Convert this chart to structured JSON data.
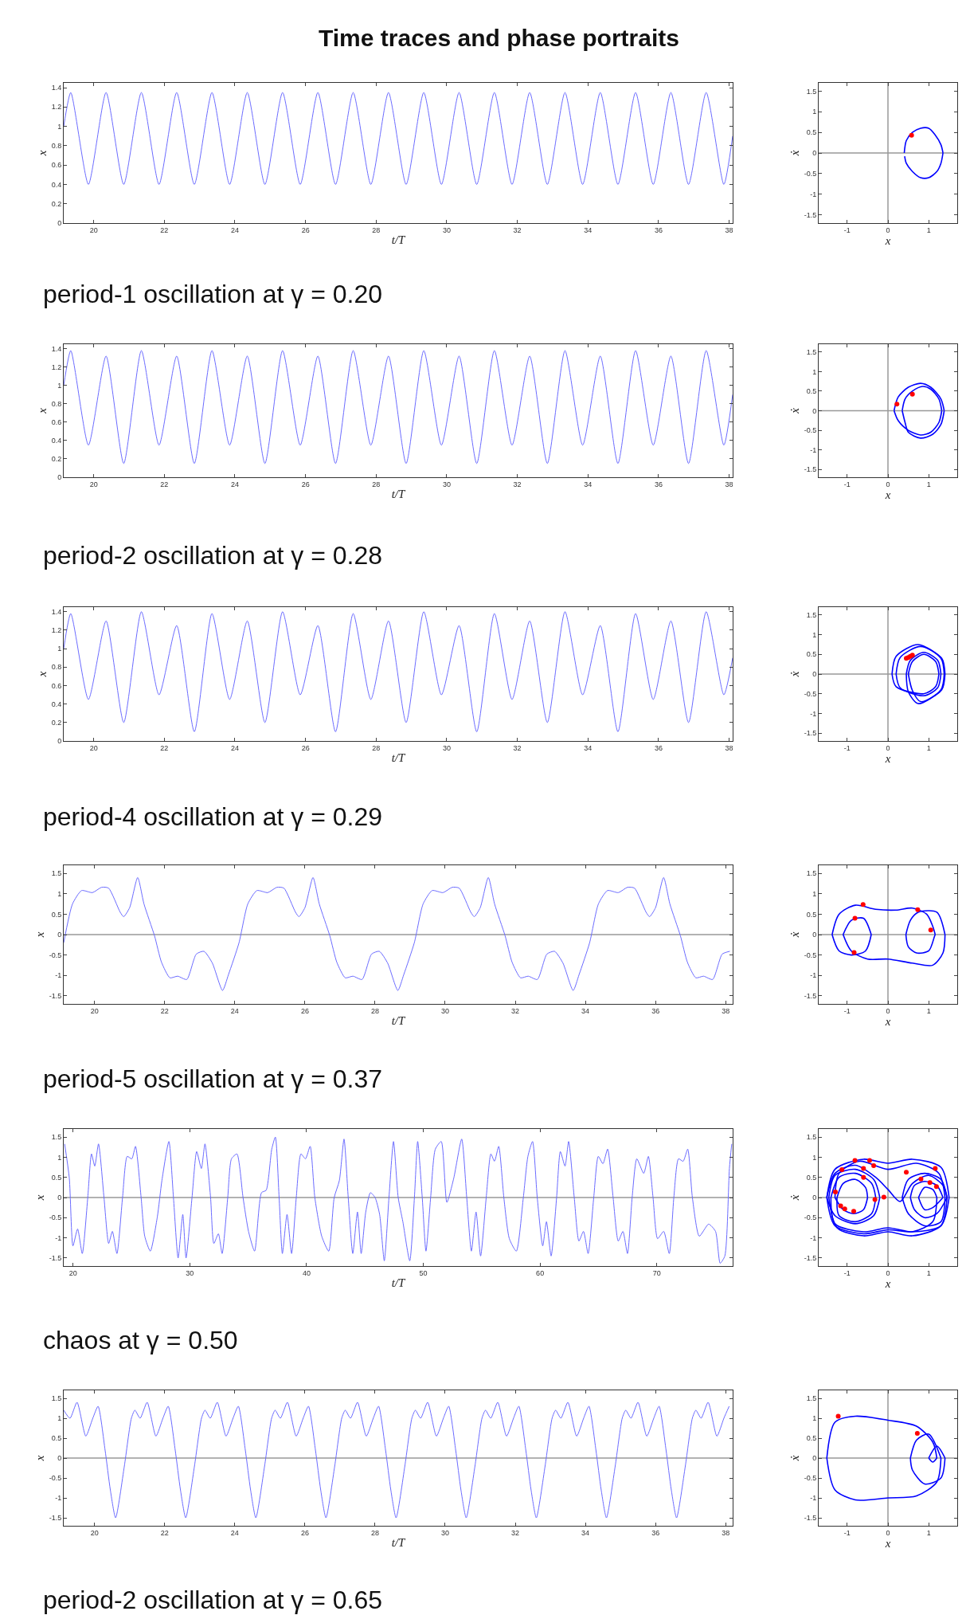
{
  "chart_data": [
    {
      "type": "line",
      "title": "Time traces and phase portraits",
      "xlabel": "t/T",
      "ylabel": "x",
      "xlim": [
        19.15,
        38.1
      ],
      "ylim": [
        0,
        1.45
      ],
      "xticks": [
        20,
        22,
        24,
        26,
        28,
        30,
        32,
        34,
        36,
        38
      ],
      "yticks": [
        0,
        0.2,
        0.4,
        0.6,
        0.8,
        1,
        1.2,
        1.4
      ],
      "annotations": [
        "period-1 oscillation at γ = 0.20"
      ],
      "series": [
        {
          "color": "#6b6bff",
          "x": [
            19.15,
            19.35,
            19.85,
            20.35,
            20.85,
            21.35,
            21.85,
            22.35,
            22.85,
            23.35,
            23.85,
            24.35,
            24.85,
            25.35,
            25.85,
            26.35,
            26.85,
            27.35,
            27.85,
            28.35,
            28.85,
            29.35,
            29.85,
            30.35,
            30.85,
            31.35,
            31.85,
            32.35,
            32.85,
            33.35,
            33.85,
            34.35,
            34.85,
            35.35,
            35.85,
            36.35,
            36.85,
            37.35,
            37.85,
            38.1
          ],
          "values": [
            1.0,
            1.35,
            0.4,
            1.35,
            0.4,
            1.35,
            0.4,
            1.35,
            0.4,
            1.35,
            0.4,
            1.35,
            0.4,
            1.35,
            0.4,
            1.35,
            0.4,
            1.35,
            0.4,
            1.35,
            0.4,
            1.35,
            0.4,
            1.35,
            0.4,
            1.35,
            0.4,
            1.35,
            0.4,
            1.35,
            0.4,
            1.35,
            0.4,
            1.35,
            0.4,
            1.35,
            0.4,
            1.35,
            0.4,
            0.9
          ]
        }
      ]
    },
    {
      "type": "line",
      "xlabel": "x",
      "ylabel": "ẋ",
      "xlim": [
        -1.7,
        1.7
      ],
      "ylim": [
        -1.7,
        1.7
      ],
      "xticks": [
        -1,
        0,
        1
      ],
      "yticks": [
        -1.5,
        -1,
        -0.5,
        0,
        0.5,
        1,
        1.5
      ],
      "ref_lines": [
        {
          "axis": "x",
          "value": 0,
          "color": "#999999"
        },
        {
          "axis": "y",
          "value": 0,
          "color": "#999999"
        }
      ],
      "series": [
        {
          "color": "#0000ff",
          "x": [
            0.4,
            0.45,
            0.6,
            0.8,
            1.0,
            1.15,
            1.3,
            1.35
          ],
          "values": [
            0,
            0.3,
            0.5,
            0.6,
            0.6,
            0.45,
            0.2,
            0
          ]
        },
        {
          "color": "#0000ff",
          "x": [
            1.35,
            1.3,
            1.2,
            1.0,
            0.8,
            0.6,
            0.45,
            0.41
          ],
          "values": [
            0,
            -0.25,
            -0.45,
            -0.6,
            -0.6,
            -0.45,
            -0.25,
            -0.08
          ]
        },
        {
          "type": "scatter",
          "marker": "circle",
          "color": "#ff0000",
          "x": [
            0.58
          ],
          "values": [
            0.43
          ]
        }
      ]
    },
    {
      "type": "line",
      "xlabel": "t/T",
      "ylabel": "x",
      "xlim": [
        19.15,
        38.1
      ],
      "ylim": [
        0,
        1.45
      ],
      "xticks": [
        20,
        22,
        24,
        26,
        28,
        30,
        32,
        34,
        36,
        38
      ],
      "yticks": [
        0,
        0.2,
        0.4,
        0.6,
        0.8,
        1,
        1.2,
        1.4
      ],
      "annotations": [
        "period-2 oscillation at γ = 0.28"
      ],
      "series": [
        {
          "color": "#6b6bff",
          "x": [
            19.15,
            19.35,
            19.85,
            20.35,
            20.85,
            21.35,
            21.85,
            22.35,
            22.85,
            23.35,
            23.85,
            24.35,
            24.85,
            25.35,
            25.85,
            26.35,
            26.85,
            27.35,
            27.85,
            28.35,
            28.85,
            29.35,
            29.85,
            30.35,
            30.85,
            31.35,
            31.85,
            32.35,
            32.85,
            33.35,
            33.85,
            34.35,
            34.85,
            35.35,
            35.85,
            36.35,
            36.85,
            37.35,
            37.85,
            38.1
          ],
          "values": [
            1.0,
            1.38,
            0.35,
            1.32,
            0.15,
            1.38,
            0.35,
            1.32,
            0.15,
            1.38,
            0.35,
            1.32,
            0.15,
            1.38,
            0.35,
            1.32,
            0.15,
            1.38,
            0.35,
            1.32,
            0.15,
            1.38,
            0.35,
            1.32,
            0.15,
            1.38,
            0.35,
            1.32,
            0.15,
            1.38,
            0.35,
            1.32,
            0.15,
            1.38,
            0.35,
            1.32,
            0.15,
            1.38,
            0.35,
            0.9
          ]
        }
      ]
    },
    {
      "type": "line",
      "xlabel": "x",
      "ylabel": "ẋ",
      "xlim": [
        -1.7,
        1.7
      ],
      "ylim": [
        -1.7,
        1.7
      ],
      "xticks": [
        -1,
        0,
        1
      ],
      "yticks": [
        -1.5,
        -1,
        -0.5,
        0,
        0.5,
        1,
        1.5
      ],
      "ref_lines": [
        {
          "axis": "x",
          "value": 0,
          "color": "#999999"
        },
        {
          "axis": "y",
          "value": 0,
          "color": "#999999"
        }
      ],
      "series": [
        {
          "color": "#0000ff",
          "x": [
            0.15,
            0.25,
            0.5,
            0.8,
            1.05,
            1.3,
            1.38
          ],
          "values": [
            0,
            0.35,
            0.6,
            0.7,
            0.6,
            0.3,
            0
          ]
        },
        {
          "color": "#0000ff",
          "x": [
            1.38,
            1.3,
            1.1,
            0.8,
            0.5,
            0.42,
            0.35
          ],
          "values": [
            0,
            -0.35,
            -0.6,
            -0.7,
            -0.55,
            -0.3,
            0
          ]
        },
        {
          "color": "#0000ff",
          "x": [
            0.35,
            0.42,
            0.6,
            0.85,
            1.05,
            1.25,
            1.32
          ],
          "values": [
            0,
            0.3,
            0.5,
            0.62,
            0.55,
            0.3,
            0
          ]
        },
        {
          "color": "#0000ff",
          "x": [
            1.32,
            1.25,
            1.05,
            0.8,
            0.5,
            0.25,
            0.15
          ],
          "values": [
            0,
            -0.3,
            -0.55,
            -0.62,
            -0.5,
            -0.25,
            0
          ]
        },
        {
          "type": "scatter",
          "marker": "circle",
          "color": "#ff0000",
          "x": [
            0.22,
            0.6
          ],
          "values": [
            0.17,
            0.42
          ]
        }
      ]
    },
    {
      "type": "line",
      "xlabel": "t/T",
      "ylabel": "x",
      "xlim": [
        19.15,
        38.1
      ],
      "ylim": [
        0,
        1.45
      ],
      "xticks": [
        20,
        22,
        24,
        26,
        28,
        30,
        32,
        34,
        36,
        38
      ],
      "yticks": [
        0,
        0.2,
        0.4,
        0.6,
        0.8,
        1,
        1.2,
        1.4
      ],
      "annotations": [
        "period-4 oscillation at γ = 0.29"
      ],
      "series": [
        {
          "color": "#6b6bff",
          "x": [
            19.15,
            19.35,
            19.85,
            20.35,
            20.85,
            21.35,
            21.85,
            22.35,
            22.85,
            23.35,
            23.85,
            24.35,
            24.85,
            25.35,
            25.85,
            26.35,
            26.85,
            27.35,
            27.85,
            28.35,
            28.85,
            29.35,
            29.85,
            30.35,
            30.85,
            31.35,
            31.85,
            32.35,
            32.85,
            33.35,
            33.85,
            34.35,
            34.85,
            35.35,
            35.85,
            36.35,
            36.85,
            37.35,
            37.85,
            38.1
          ],
          "values": [
            1.0,
            1.38,
            0.45,
            1.3,
            0.2,
            1.4,
            0.5,
            1.25,
            0.1,
            1.38,
            0.45,
            1.3,
            0.2,
            1.4,
            0.5,
            1.25,
            0.1,
            1.38,
            0.45,
            1.3,
            0.2,
            1.4,
            0.5,
            1.25,
            0.1,
            1.38,
            0.45,
            1.3,
            0.2,
            1.4,
            0.5,
            1.25,
            0.1,
            1.38,
            0.45,
            1.3,
            0.2,
            1.4,
            0.5,
            0.9
          ]
        }
      ]
    },
    {
      "type": "line",
      "xlabel": "x",
      "ylabel": "ẋ",
      "xlim": [
        -1.7,
        1.7
      ],
      "ylim": [
        -1.7,
        1.7
      ],
      "xticks": [
        -1,
        0,
        1
      ],
      "yticks": [
        -1.5,
        -1,
        -0.5,
        0,
        0.5,
        1,
        1.5
      ],
      "ref_lines": [
        {
          "axis": "x",
          "value": 0,
          "color": "#999999"
        },
        {
          "axis": "y",
          "value": 0,
          "color": "#999999"
        }
      ],
      "series": [
        {
          "color": "#0000ff",
          "x": [
            0.1,
            0.2,
            0.74,
            1.3,
            1.38
          ],
          "values": [
            0,
            0.45,
            0.75,
            0.4,
            0
          ]
        },
        {
          "color": "#0000ff",
          "x": [
            1.38,
            1.3,
            0.74,
            0.5,
            0.45
          ],
          "values": [
            0,
            -0.4,
            -0.75,
            -0.45,
            0
          ]
        },
        {
          "color": "#0000ff",
          "x": [
            0.45,
            0.55,
            0.88,
            1.22,
            1.3
          ],
          "values": [
            0,
            0.35,
            0.55,
            0.35,
            0
          ]
        },
        {
          "color": "#0000ff",
          "x": [
            1.3,
            1.22,
            0.88,
            0.3,
            0.2
          ],
          "values": [
            0,
            -0.35,
            -0.55,
            -0.35,
            0
          ]
        },
        {
          "color": "#0000ff",
          "x": [
            0.2,
            0.3,
            0.8,
            1.32,
            1.4
          ],
          "values": [
            0,
            0.42,
            0.7,
            0.4,
            0
          ]
        },
        {
          "color": "#0000ff",
          "x": [
            1.4,
            1.32,
            0.8,
            0.6,
            0.5
          ],
          "values": [
            0,
            -0.4,
            -0.7,
            -0.42,
            0
          ]
        },
        {
          "color": "#0000ff",
          "x": [
            0.5,
            0.6,
            0.88,
            1.17,
            1.25
          ],
          "values": [
            0,
            0.32,
            0.5,
            0.32,
            0
          ]
        },
        {
          "color": "#0000ff",
          "x": [
            1.25,
            1.17,
            0.88,
            0.2,
            0.1
          ],
          "values": [
            0,
            -0.32,
            -0.5,
            -0.32,
            0
          ]
        },
        {
          "type": "scatter",
          "marker": "circle",
          "color": "#ff0000",
          "x": [
            0.55,
            0.45,
            0.5,
            0.6
          ],
          "values": [
            0.45,
            0.4,
            0.42,
            0.48
          ]
        }
      ]
    },
    {
      "type": "line",
      "xlabel": "t/T",
      "ylabel": "x",
      "xlim": [
        19.12,
        38.2
      ],
      "ylim": [
        -1.7,
        1.7
      ],
      "xticks": [
        20,
        22,
        24,
        26,
        28,
        30,
        32,
        34,
        36,
        38
      ],
      "yticks": [
        -1.5,
        -1,
        -0.5,
        0,
        0.5,
        1,
        1.5
      ],
      "ref_lines": [
        {
          "axis": "y",
          "value": 0,
          "color": "#999999"
        }
      ],
      "annotations": [
        "period-5 oscillation at γ = 0.37"
      ],
      "series": [
        {
          "color": "#6b6bff",
          "x": [
            19.12,
            19.37,
            19.63,
            19.94,
            20.2,
            20.4,
            20.73,
            20.83,
            21.0,
            21.23,
            21.41,
            21.71,
            21.91,
            22.15,
            22.37,
            22.63,
            22.9,
            23.12,
            23.36,
            23.65,
            23.82,
            24.12,
            24.37,
            24.63,
            24.94,
            25.2,
            25.4,
            25.73,
            25.83,
            26.0,
            26.23,
            26.41,
            26.71,
            26.91,
            27.15,
            27.37,
            27.63,
            27.9,
            28.12,
            28.36,
            28.65,
            28.82,
            29.12,
            29.37,
            29.63,
            29.94,
            30.2,
            30.4,
            30.73,
            30.83,
            31.0,
            31.23,
            31.41,
            31.71,
            31.91,
            32.15,
            32.37,
            32.63,
            32.9,
            33.12,
            33.36,
            33.65,
            33.82,
            34.12,
            34.37,
            34.63,
            34.94,
            35.2,
            35.4,
            35.73,
            35.83,
            36.0,
            36.23,
            36.41,
            36.71,
            36.91,
            37.15,
            37.37,
            37.63,
            37.9,
            38.12
          ],
          "values": [
            -0.2,
            0.75,
            1.08,
            1.03,
            1.16,
            1.14,
            0.55,
            0.44,
            0.66,
            1.4,
            0.75,
            -0.03,
            -0.68,
            -1.06,
            -1.02,
            -1.1,
            -0.48,
            -0.41,
            -0.7,
            -1.37,
            -0.98,
            -0.2,
            0.75,
            1.08,
            1.03,
            1.16,
            1.14,
            0.55,
            0.44,
            0.66,
            1.4,
            0.75,
            -0.03,
            -0.68,
            -1.06,
            -1.02,
            -1.1,
            -0.48,
            -0.41,
            -0.7,
            -1.37,
            -0.98,
            -0.2,
            0.75,
            1.08,
            1.03,
            1.16,
            1.14,
            0.55,
            0.44,
            0.66,
            1.4,
            0.75,
            -0.03,
            -0.68,
            -1.06,
            -1.02,
            -1.1,
            -0.48,
            -0.41,
            -0.7,
            -1.37,
            -0.98,
            -0.2,
            0.75,
            1.08,
            1.03,
            1.16,
            1.14,
            0.55,
            0.44,
            0.66,
            1.4,
            0.75,
            -0.03,
            -0.68,
            -1.06,
            -1.02,
            -1.1,
            -0.48,
            -0.41
          ]
        }
      ]
    },
    {
      "type": "line",
      "xlabel": "x",
      "ylabel": "ẋ",
      "xlim": [
        -1.7,
        1.7
      ],
      "ylim": [
        -1.7,
        1.7
      ],
      "xticks": [
        -1,
        0,
        1
      ],
      "yticks": [
        -1.5,
        -1,
        -0.5,
        0,
        0.5,
        1,
        1.5
      ],
      "ref_lines": [
        {
          "axis": "x",
          "value": 0,
          "color": "#999999"
        },
        {
          "axis": "y",
          "value": 0,
          "color": "#999999"
        }
      ],
      "series": [
        {
          "color": "#0000ff",
          "x": [
            -1.37,
            -1.2,
            -0.8,
            -0.3,
            0.2,
            0.6,
            0.95,
            1.1,
            1.16
          ],
          "values": [
            0,
            0.5,
            0.72,
            0.62,
            0.6,
            0.65,
            0.5,
            0.2,
            0
          ]
        },
        {
          "color": "#0000ff",
          "x": [
            1.16,
            1.14,
            1.0,
            0.7,
            0.5,
            0.44
          ],
          "values": [
            0,
            -0.05,
            -0.4,
            -0.45,
            -0.3,
            0
          ]
        },
        {
          "color": "#0000ff",
          "x": [
            0.44,
            0.55,
            0.75,
            1.2,
            1.4
          ],
          "values": [
            0,
            0.35,
            0.55,
            0.55,
            0
          ]
        },
        {
          "color": "#0000ff",
          "x": [
            1.4,
            1.35,
            1.1,
            0.6,
            0,
            -0.5,
            -0.9,
            -1.1
          ],
          "values": [
            0,
            -0.45,
            -0.75,
            -0.7,
            -0.6,
            -0.6,
            -0.4,
            0
          ]
        },
        {
          "color": "#0000ff",
          "x": [
            -1.1,
            -0.9,
            -0.6,
            -0.41
          ],
          "values": [
            0,
            0.35,
            0.4,
            0
          ]
        },
        {
          "color": "#0000ff",
          "x": [
            -0.41,
            -0.55,
            -0.9,
            -1.2,
            -1.37
          ],
          "values": [
            0,
            -0.4,
            -0.5,
            -0.4,
            0
          ]
        },
        {
          "type": "scatter",
          "marker": "circle",
          "color": "#ff0000",
          "x": [
            -0.81,
            -0.61,
            0.73,
            1.05,
            -0.83
          ],
          "values": [
            0.4,
            0.74,
            0.61,
            0.11,
            -0.44
          ]
        }
      ]
    },
    {
      "type": "line",
      "xlabel": "t/T",
      "ylabel": "x",
      "xlim": [
        19.2,
        76.5
      ],
      "ylim": [
        -1.7,
        1.7
      ],
      "xticks": [
        20,
        30,
        40,
        50,
        60,
        70
      ],
      "yticks": [
        -1.5,
        -1,
        -0.5,
        0,
        0.5,
        1,
        1.5
      ],
      "ref_lines": [
        {
          "axis": "y",
          "value": 0,
          "color": "#999999"
        }
      ],
      "annotations": [
        "chaos at γ = 0.50"
      ],
      "series": [
        {
          "color": "#6b6bff",
          "x": [
            19.28,
            19.68,
            19.99,
            20.39,
            20.79,
            21.26,
            21.58,
            21.86,
            22.18,
            22.65,
            23.05,
            23.37,
            23.76,
            24.24,
            24.64,
            25.03,
            25.35,
            25.83,
            26.14,
            26.62,
            27.22,
            27.61,
            28.21,
            28.6,
            29.0,
            29.4,
            29.68,
            30.19,
            30.59,
            30.99,
            31.3,
            31.78,
            32.06,
            32.45,
            32.77,
            33.25,
            33.57,
            34.04,
            34.56,
            35.03,
            35.55,
            36.14,
            36.54,
            37.02,
            37.33,
            37.65,
            37.93,
            38.33,
            38.72,
            39.12,
            39.52,
            39.91,
            40.31,
            40.71,
            41.3,
            41.9,
            42.37,
            42.81,
            43.21,
            43.57,
            43.96,
            44.36,
            44.68,
            45.07,
            45.47,
            45.87,
            46.26,
            46.66,
            47.06,
            47.45,
            47.85,
            48.25,
            48.84,
            49.24,
            49.52,
            49.91,
            50.23,
            50.63,
            51.03,
            51.54,
            52.02,
            52.61,
            53.29,
            53.72,
            54.12,
            54.52,
            54.91,
            55.39,
            55.79,
            56.1,
            56.46,
            56.9,
            57.37,
            57.97,
            58.57,
            58.96,
            59.36,
            59.76,
            60.23,
            60.55,
            60.95,
            61.42,
            61.74,
            62.14,
            62.45,
            62.93,
            63.33,
            63.72,
            64.12,
            64.6,
            64.99,
            65.39,
            65.79,
            66.26,
            66.7,
            67.1,
            67.49,
            67.89,
            68.29,
            68.88,
            69.28,
            69.68,
            70.07,
            70.59,
            71.07,
            71.46,
            71.86,
            72.26,
            72.65,
            73.05,
            73.64,
            74.44,
            75.03,
            75.43,
            75.83,
            76.22,
            76.42
          ],
          "values": [
            1.33,
            0.48,
            -1.2,
            -0.78,
            -1.39,
            0,
            1.08,
            0.78,
            1.33,
            0,
            -1.14,
            -0.84,
            -1.39,
            0,
            1.02,
            0.96,
            1.27,
            0,
            -0.96,
            -1.33,
            -0.48,
            0.42,
            1.39,
            0,
            -1.5,
            -0.42,
            -1.5,
            0,
            1.14,
            0.72,
            1.33,
            0,
            -1.14,
            -0.9,
            -1.39,
            0,
            0.96,
            1.08,
            0,
            -0.84,
            -1.33,
            0.12,
            0.18,
            1.2,
            1.5,
            0,
            -1.39,
            -0.42,
            -1.39,
            0,
            1.08,
            0.96,
            1.27,
            0,
            -0.96,
            -1.33,
            0,
            0.42,
            1.45,
            0,
            -1.39,
            -0.36,
            -1.39,
            -0.36,
            0.12,
            0,
            -0.42,
            -1.57,
            0,
            1.39,
            0,
            -0.6,
            -1.57,
            0,
            1.39,
            0,
            -1.33,
            0,
            1.2,
            1.39,
            -0.12,
            0.48,
            1.45,
            0,
            -1.33,
            -0.36,
            -1.45,
            0,
            1.08,
            0.9,
            1.27,
            0,
            -1.02,
            -1.33,
            0,
            1.02,
            1.39,
            0,
            -1.2,
            -0.6,
            -1.45,
            0,
            1.14,
            0.78,
            1.39,
            0,
            -1.08,
            -0.84,
            -1.39,
            0,
            1.02,
            0.84,
            1.2,
            0,
            -1.08,
            -0.84,
            -1.39,
            0,
            0.96,
            0.6,
            1.02,
            0,
            -1.02,
            -0.84,
            -1.39,
            0,
            0.96,
            0.9,
            1.2,
            0,
            -0.96,
            -0.66,
            -0.84,
            -1.63,
            -1.45,
            0.72,
            1.33
          ]
        }
      ]
    },
    {
      "type": "line",
      "xlabel": "x",
      "ylabel": "ẋ",
      "xlim": [
        -1.7,
        1.7
      ],
      "ylim": [
        -1.7,
        1.7
      ],
      "xticks": [
        -1,
        0,
        1
      ],
      "yticks": [
        -1.5,
        -1,
        -0.5,
        0,
        0.5,
        1,
        1.5
      ],
      "ref_lines": [
        {
          "axis": "x",
          "value": 0,
          "color": "#999999"
        },
        {
          "axis": "y",
          "value": 0,
          "color": "#999999"
        }
      ],
      "series": [
        {
          "color": "#0000ff",
          "x": [
            -1.5,
            -1.3,
            -0.6,
            0,
            0.6,
            1.3,
            1.5
          ],
          "values": [
            0,
            0.7,
            0.95,
            0.85,
            0.95,
            0.75,
            0
          ]
        },
        {
          "color": "#0000ff",
          "x": [
            1.5,
            1.3,
            0.6,
            0,
            -0.6,
            -1.3,
            -1.4
          ],
          "values": [
            0,
            -0.7,
            -0.85,
            -0.75,
            -0.85,
            -0.65,
            0
          ]
        },
        {
          "color": "#0000ff",
          "x": [
            -1.4,
            -1.2,
            -0.8,
            -0.4,
            -0.3
          ],
          "values": [
            0,
            0.5,
            0.6,
            0.35,
            0
          ]
        },
        {
          "color": "#0000ff",
          "x": [
            -0.3,
            -0.4,
            -0.8,
            -1.2,
            -1.25
          ],
          "values": [
            0,
            -0.4,
            -0.6,
            -0.45,
            0
          ]
        },
        {
          "color": "#0000ff",
          "x": [
            -1.25,
            -1.1,
            -0.8,
            -0.55,
            -0.5
          ],
          "values": [
            0,
            0.35,
            0.45,
            0.25,
            0
          ]
        },
        {
          "color": "#0000ff",
          "x": [
            -0.5,
            -0.6,
            -0.85,
            -1.1,
            -1.3
          ],
          "values": [
            0,
            -0.3,
            -0.4,
            -0.3,
            0
          ]
        },
        {
          "color": "#0000ff",
          "x": [
            -1.3,
            -1.2,
            -0.7,
            0,
            0.7,
            1.25,
            1.4
          ],
          "values": [
            0,
            0.6,
            0.9,
            0.7,
            0.85,
            0.6,
            0
          ]
        },
        {
          "color": "#0000ff",
          "x": [
            1.4,
            1.3,
            0.9,
            0.5,
            0.35
          ],
          "values": [
            0,
            -0.6,
            -0.7,
            -0.4,
            0
          ]
        },
        {
          "color": "#0000ff",
          "x": [
            0.35,
            0.5,
            0.9,
            1.3,
            1.45
          ],
          "values": [
            0,
            0.45,
            0.6,
            0.45,
            0
          ]
        },
        {
          "color": "#0000ff",
          "x": [
            1.45,
            1.2,
            0.9,
            0.65,
            0.55
          ],
          "values": [
            0,
            -0.4,
            -0.5,
            -0.3,
            0
          ]
        },
        {
          "color": "#0000ff",
          "x": [
            0.55,
            0.65,
            0.9,
            1.2,
            1.35
          ],
          "values": [
            0,
            0.3,
            0.4,
            0.3,
            0
          ]
        },
        {
          "color": "#0000ff",
          "x": [
            1.35,
            1.1,
            0.9,
            0.75
          ],
          "values": [
            0,
            -0.25,
            -0.3,
            0
          ]
        },
        {
          "color": "#0000ff",
          "x": [
            0.75,
            0.9,
            1.1,
            1.2
          ],
          "values": [
            0,
            0.25,
            0.2,
            0
          ]
        },
        {
          "color": "#0000ff",
          "x": [
            1.2,
            1.1,
            0.6,
            0,
            -0.6,
            -1.3,
            -1.5
          ],
          "values": [
            0,
            -0.6,
            -0.85,
            -0.8,
            -0.9,
            -0.7,
            0
          ]
        },
        {
          "color": "#0000ff",
          "x": [
            -1.5,
            -1.3,
            -0.8,
            -0.3,
            0,
            0.3,
            0.6,
            1.0,
            1.35,
            1.45
          ],
          "values": [
            0,
            0.6,
            0.8,
            0.5,
            0.2,
            -0.1,
            0.35,
            0.55,
            0.3,
            0
          ]
        },
        {
          "color": "#0000ff",
          "x": [
            1.45,
            1.3,
            0.6,
            0,
            -0.6,
            -1.25,
            -1.45
          ],
          "values": [
            0,
            -0.7,
            -0.95,
            -0.85,
            -0.95,
            -0.75,
            0
          ]
        },
        {
          "color": "#0000ff",
          "x": [
            -1.45,
            -1.3,
            -0.8,
            -0.35,
            -0.2
          ],
          "values": [
            0,
            0.55,
            0.7,
            0.45,
            0
          ]
        },
        {
          "color": "#0000ff",
          "x": [
            -0.2,
            -0.35,
            -0.8,
            -1.3,
            -1.5
          ],
          "values": [
            0,
            -0.45,
            -0.65,
            -0.45,
            0
          ]
        },
        {
          "type": "scatter",
          "marker": "circle",
          "color": "#ff0000",
          "x": [
            -0.81,
            -0.6,
            -0.6,
            -0.45,
            -0.35,
            -1.13,
            -1.29,
            -1.16,
            -1.06,
            -0.84,
            -0.32,
            -0.1,
            0.45,
            0.81,
            1.03,
            1.16,
            1.19
          ],
          "values": [
            0.92,
            0.72,
            0.5,
            0.92,
            0.79,
            0.69,
            0.14,
            -0.21,
            -0.28,
            -0.34,
            -0.05,
            0.01,
            0.63,
            0.46,
            0.37,
            0.72,
            0.27
          ]
        }
      ]
    },
    {
      "type": "line",
      "xlabel": "t/T",
      "ylabel": "x",
      "xlim": [
        19.12,
        38.2
      ],
      "ylim": [
        -1.7,
        1.7
      ],
      "xticks": [
        20,
        22,
        24,
        26,
        28,
        30,
        32,
        34,
        36,
        38
      ],
      "yticks": [
        -1.5,
        -1,
        -0.5,
        0,
        0.5,
        1,
        1.5
      ],
      "ref_lines": [
        {
          "axis": "y",
          "value": 0,
          "color": "#999999"
        }
      ],
      "annotations": [
        "period-2 oscillation at γ = 0.65"
      ],
      "series": [
        {
          "color": "#6b6bff",
          "x": [
            19.12,
            19.3,
            19.5,
            19.75,
            19.95,
            20.1,
            20.3,
            20.45,
            20.6,
            20.85,
            21.05,
            21.15,
            21.3,
            21.5,
            21.75,
            21.95,
            22.1,
            22.3,
            22.45,
            22.6,
            22.85,
            23.05,
            23.15,
            23.3,
            23.5,
            23.75,
            23.95,
            24.1,
            24.3,
            24.45,
            24.6,
            24.85,
            25.05,
            25.15,
            25.3,
            25.5,
            25.75,
            25.95,
            26.1,
            26.3,
            26.45,
            26.6,
            26.85,
            27.05,
            27.15,
            27.3,
            27.5,
            27.75,
            27.95,
            28.1,
            28.3,
            28.45,
            28.6,
            28.85,
            29.05,
            29.15,
            29.3,
            29.5,
            29.75,
            29.95,
            30.1,
            30.3,
            30.45,
            30.6,
            30.85,
            31.05,
            31.15,
            31.3,
            31.5,
            31.75,
            31.95,
            32.1,
            32.3,
            32.45,
            32.6,
            32.85,
            33.05,
            33.15,
            33.3,
            33.5,
            33.75,
            33.95,
            34.1,
            34.3,
            34.45,
            34.6,
            34.85,
            35.05,
            35.15,
            35.3,
            35.5,
            35.75,
            35.95,
            36.1,
            36.3,
            36.45,
            36.6,
            36.85,
            37.05,
            37.15,
            37.3,
            37.5,
            37.75,
            37.95,
            38.1
          ],
          "values": [
            1.2,
            1.0,
            1.4,
            0.55,
            1.0,
            1.3,
            0.2,
            -0.8,
            -1.5,
            -0.2,
            1.0,
            1.2,
            1.0,
            1.4,
            0.55,
            1.0,
            1.3,
            0.2,
            -0.8,
            -1.5,
            -0.2,
            1.0,
            1.2,
            1.0,
            1.4,
            0.55,
            1.0,
            1.3,
            0.2,
            -0.8,
            -1.5,
            -0.2,
            1.0,
            1.2,
            1.0,
            1.4,
            0.55,
            1.0,
            1.3,
            0.2,
            -0.8,
            -1.5,
            -0.2,
            1.0,
            1.2,
            1.0,
            1.4,
            0.55,
            1.0,
            1.3,
            0.2,
            -0.8,
            -1.5,
            -0.2,
            1.0,
            1.2,
            1.0,
            1.4,
            0.55,
            1.0,
            1.3,
            0.2,
            -0.8,
            -1.5,
            -0.2,
            1.0,
            1.2,
            1.0,
            1.4,
            0.55,
            1.0,
            1.3,
            0.2,
            -0.8,
            -1.5,
            -0.2,
            1.0,
            1.2,
            1.0,
            1.4,
            0.55,
            1.0,
            1.3,
            0.2,
            -0.8,
            -1.5,
            -0.2,
            1.0,
            1.2,
            1.0,
            1.4,
            0.55,
            1.0,
            1.3,
            0.2,
            -0.8,
            -1.5,
            -0.2,
            1.0,
            1.2,
            1.0,
            1.4,
            0.55,
            1.0,
            1.3
          ]
        }
      ]
    },
    {
      "type": "line",
      "xlabel": "x",
      "ylabel": "ẋ",
      "xlim": [
        -1.7,
        1.7
      ],
      "ylim": [
        -1.7,
        1.7
      ],
      "xticks": [
        -1,
        0,
        1
      ],
      "yticks": [
        -1.5,
        -1,
        -0.5,
        0,
        0.5,
        1,
        1.5
      ],
      "ref_lines": [
        {
          "axis": "x",
          "value": 0,
          "color": "#999999"
        },
        {
          "axis": "y",
          "value": 0,
          "color": "#999999"
        }
      ],
      "series": [
        {
          "color": "#0000ff",
          "x": [
            -1.5,
            -1.3,
            -0.8,
            0,
            0.7,
            1.1,
            1.2
          ],
          "values": [
            0,
            0.9,
            1.05,
            0.95,
            0.8,
            0.4,
            0
          ]
        },
        {
          "color": "#0000ff",
          "x": [
            1.2,
            1.1,
            1.0
          ],
          "values": [
            0,
            -0.1,
            0
          ]
        },
        {
          "color": "#0000ff",
          "x": [
            1.0,
            1.2,
            1.4
          ],
          "values": [
            0,
            0.3,
            0
          ]
        },
        {
          "color": "#0000ff",
          "x": [
            1.4,
            1.3,
            0.9,
            0.6,
            0.55
          ],
          "values": [
            0,
            -0.5,
            -0.65,
            -0.3,
            0
          ]
        },
        {
          "color": "#0000ff",
          "x": [
            0.55,
            0.7,
            1.0,
            1.3
          ],
          "values": [
            0,
            0.45,
            0.6,
            0
          ]
        },
        {
          "color": "#0000ff",
          "x": [
            1.3,
            1.2,
            0.7,
            0,
            -0.8,
            -1.3,
            -1.5
          ],
          "values": [
            0,
            -0.6,
            -0.95,
            -1.0,
            -1.05,
            -0.8,
            0
          ]
        },
        {
          "type": "scatter",
          "marker": "circle",
          "color": "#ff0000",
          "x": [
            -1.22,
            0.72
          ],
          "values": [
            1.05,
            0.62
          ]
        }
      ]
    }
  ]
}
